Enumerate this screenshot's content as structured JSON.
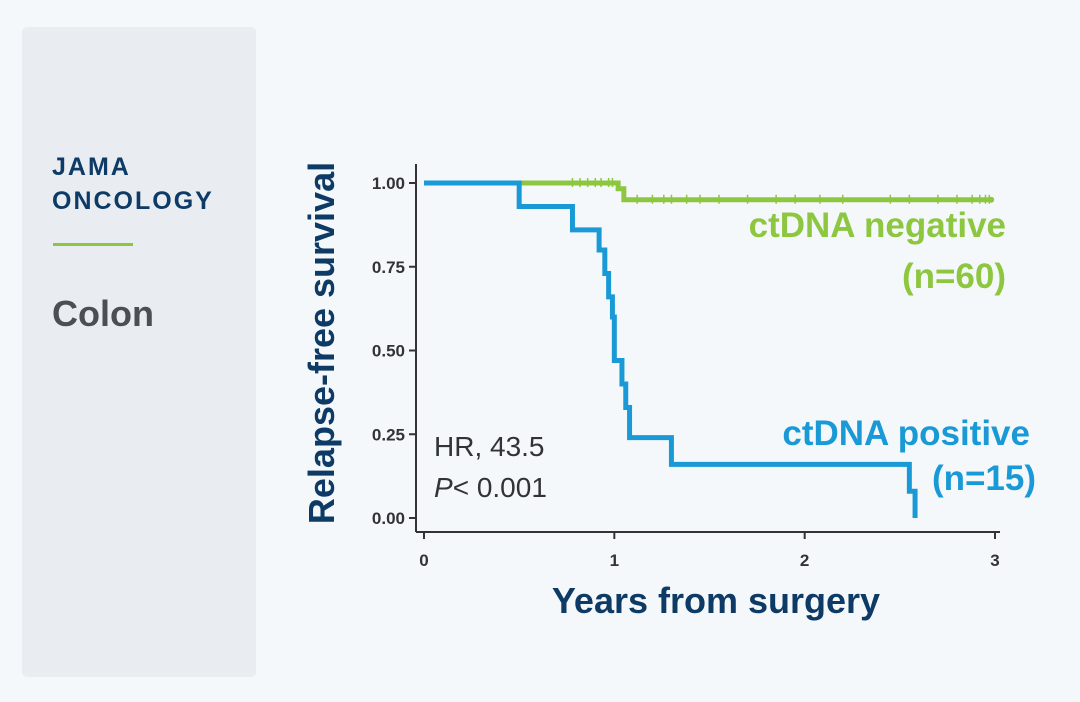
{
  "sidebar": {
    "journal_line1": "JAMA",
    "journal_line2": "ONCOLOGY",
    "section": "Colon",
    "accent_color": "#8dc63f"
  },
  "chart_data": {
    "type": "line",
    "step": true,
    "xlabel": "Years from surgery",
    "ylabel": "Relapse-free survival",
    "xlim": [
      0,
      3
    ],
    "ylim": [
      0,
      1
    ],
    "x_ticks": [
      "0",
      "1",
      "2",
      "3"
    ],
    "y_ticks": [
      "0.00",
      "0.25",
      "0.50",
      "0.75",
      "1.00"
    ],
    "annotation": {
      "hr_text": "HR, 43.5",
      "p_label": "P",
      "p_value": "< 0.001"
    },
    "series": [
      {
        "name": "ctDNA negative",
        "n_label": "(n=60)",
        "color": "#8dc63f",
        "x": [
          0,
          1.02,
          1.05,
          2.98
        ],
        "y": [
          1.0,
          0.983,
          0.95,
          0.95
        ],
        "censor_x": [
          0.78,
          0.82,
          0.86,
          0.9,
          0.93,
          0.97,
          0.99,
          1.12,
          1.2,
          1.26,
          1.3,
          1.38,
          1.45,
          1.55,
          1.7,
          1.85,
          1.95,
          2.08,
          2.2,
          2.45,
          2.55,
          2.7,
          2.8,
          2.88,
          2.92,
          2.95,
          2.97
        ]
      },
      {
        "name": "ctDNA positive",
        "n_label": "(n=15)",
        "color": "#199ad6",
        "x": [
          0,
          0.5,
          0.78,
          0.92,
          0.95,
          0.97,
          0.99,
          1.0,
          1.04,
          1.06,
          1.08,
          1.3,
          2.55,
          2.58,
          2.58
        ],
        "y": [
          1.0,
          0.93,
          0.86,
          0.8,
          0.73,
          0.66,
          0.6,
          0.47,
          0.4,
          0.33,
          0.24,
          0.16,
          0.08,
          0.08,
          0.0
        ]
      }
    ]
  }
}
